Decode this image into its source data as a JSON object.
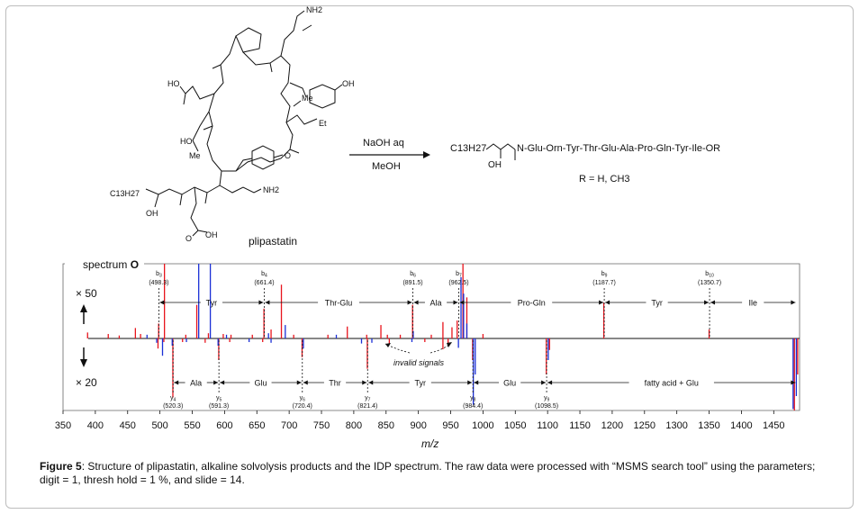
{
  "structure": {
    "compound_name": "plipastatin",
    "reagent_top": "NaOH aq",
    "reagent_bottom": "MeOH",
    "product_chain": "C13H27",
    "product_sequence": "N-Glu-Orn-Tyr-Thr-Glu-Ala-Pro-Gln-Tyr-Ile-OR",
    "product_oh": "OH",
    "r_definition": "R = H, CH3",
    "labels": {
      "nh2_top": "NH2",
      "ho_left": "HO",
      "oh_right": "OH",
      "me1": "Me",
      "et": "Et",
      "ho_thr": "HO",
      "me2": "Me",
      "nh2_orn": "NH2",
      "c13h27": "C13H27",
      "oh_fa": "OH",
      "o_ester": "O",
      "glu_oh": "OH",
      "glu_o": "O"
    }
  },
  "spectrum": {
    "label": "spectrum",
    "label_bold": "O",
    "scale_top": "× 50",
    "scale_bottom": "× 20",
    "x_axis_label": "m/z",
    "invalid_label": "invalid signals"
  },
  "chart_data": {
    "type": "bar",
    "xlim": [
      350,
      1490
    ],
    "x_ticks": [
      350,
      400,
      450,
      500,
      550,
      600,
      650,
      700,
      750,
      800,
      850,
      900,
      950,
      1000,
      1050,
      1100,
      1150,
      1200,
      1250,
      1300,
      1350,
      1400,
      1450
    ],
    "xlabel": "m/z",
    "b_ions": [
      {
        "ion": "b3",
        "mz": "498.3",
        "x": 498.3
      },
      {
        "ion": "b4",
        "mz": "661.4",
        "x": 661.4
      },
      {
        "ion": "b6",
        "mz": "891.5",
        "x": 891.5
      },
      {
        "ion": "b7",
        "mz": "962.5",
        "x": 962.5
      },
      {
        "ion": "b9",
        "mz": "1187.7",
        "x": 1187.7
      },
      {
        "ion": "b10",
        "mz": "1350.7",
        "x": 1350.7
      }
    ],
    "y_ions": [
      {
        "ion": "y4",
        "mz": "520.3",
        "x": 520.3
      },
      {
        "ion": "y5",
        "mz": "591.3",
        "x": 591.3
      },
      {
        "ion": "y6",
        "mz": "720.4",
        "x": 720.4
      },
      {
        "ion": "y7",
        "mz": "821.4",
        "x": 821.4
      },
      {
        "ion": "y8",
        "mz": "984.4",
        "x": 984.4
      },
      {
        "ion": "y9",
        "mz": "1098.5",
        "x": 1098.5
      }
    ],
    "b_segments": [
      {
        "label": "Tyr",
        "from": 498.3,
        "to": 661.4
      },
      {
        "label": "Thr-Glu",
        "from": 661.4,
        "to": 891.5
      },
      {
        "label": "Ala",
        "from": 891.5,
        "to": 962.5
      },
      {
        "label": "Pro-Gln",
        "from": 962.5,
        "to": 1187.7
      },
      {
        "label": "Tyr",
        "from": 1187.7,
        "to": 1350.7
      },
      {
        "label": "Ile",
        "from": 1350.7,
        "to": 1485
      }
    ],
    "y_segments": [
      {
        "label": "Ala",
        "from": 520.3,
        "to": 591.3
      },
      {
        "label": "Glu",
        "from": 591.3,
        "to": 720.4
      },
      {
        "label": "Thr",
        "from": 720.4,
        "to": 821.4
      },
      {
        "label": "Tyr",
        "from": 821.4,
        "to": 984.4
      },
      {
        "label": "Glu",
        "from": 984.4,
        "to": 1098.5
      },
      {
        "label": "fatty acid + Glu",
        "from": 1098.5,
        "to": 1485
      }
    ],
    "upper_peaks_red": [
      [
        388,
        0.08
      ],
      [
        420,
        0.06
      ],
      [
        437,
        0.04
      ],
      [
        462,
        0.14
      ],
      [
        470,
        0.06
      ],
      [
        498,
        0.2
      ],
      [
        507,
        1.0
      ],
      [
        540,
        0.05
      ],
      [
        557,
        0.45
      ],
      [
        575,
        0.07
      ],
      [
        598,
        0.06
      ],
      [
        610,
        0.05
      ],
      [
        643,
        0.05
      ],
      [
        661,
        0.4
      ],
      [
        672,
        0.12
      ],
      [
        688,
        0.72
      ],
      [
        707,
        0.05
      ],
      [
        760,
        0.05
      ],
      [
        790,
        0.16
      ],
      [
        820,
        0.05
      ],
      [
        842,
        0.18
      ],
      [
        852,
        0.05
      ],
      [
        872,
        0.05
      ],
      [
        891,
        0.45
      ],
      [
        920,
        0.05
      ],
      [
        938,
        0.22
      ],
      [
        952,
        0.15
      ],
      [
        960,
        0.24
      ],
      [
        969,
        1.0
      ],
      [
        975,
        0.55
      ],
      [
        1000,
        0.06
      ],
      [
        1187,
        0.48
      ],
      [
        1350,
        0.12
      ]
    ],
    "upper_peaks_blue": [
      [
        480,
        0.05
      ],
      [
        560,
        1.0
      ],
      [
        578,
        1.0
      ],
      [
        603,
        0.05
      ],
      [
        668,
        0.07
      ],
      [
        694,
        0.18
      ],
      [
        773,
        0.05
      ],
      [
        892,
        0.1
      ],
      [
        966,
        0.82
      ],
      [
        970,
        0.6
      ],
      [
        975,
        0.2
      ]
    ],
    "lower_peaks_red": [
      [
        497,
        0.14
      ],
      [
        506,
        0.05
      ],
      [
        520,
        0.82
      ],
      [
        535,
        0.05
      ],
      [
        570,
        0.06
      ],
      [
        591,
        0.3
      ],
      [
        608,
        0.05
      ],
      [
        659,
        0.05
      ],
      [
        720,
        0.26
      ],
      [
        821,
        0.42
      ],
      [
        855,
        0.08
      ],
      [
        910,
        0.05
      ],
      [
        938,
        0.15
      ],
      [
        946,
        0.1
      ],
      [
        984,
        0.3
      ],
      [
        1098,
        0.5
      ],
      [
        1103,
        0.16
      ],
      [
        1482,
        1.0
      ],
      [
        1487,
        0.5
      ]
    ],
    "lower_peaks_blue": [
      [
        495,
        0.06
      ],
      [
        504,
        0.24
      ],
      [
        519,
        0.1
      ],
      [
        541,
        0.05
      ],
      [
        590,
        0.1
      ],
      [
        638,
        0.05
      ],
      [
        672,
        0.06
      ],
      [
        722,
        0.14
      ],
      [
        812,
        0.07
      ],
      [
        828,
        0.06
      ],
      [
        890,
        0.05
      ],
      [
        962,
        0.13
      ],
      [
        985,
        0.92
      ],
      [
        988,
        0.5
      ],
      [
        1101,
        0.3
      ],
      [
        1480,
        0.98
      ],
      [
        1485,
        0.8
      ]
    ]
  },
  "caption": {
    "label": "Figure 5",
    "text": ":  Structure of plipastatin, alkaline solvolysis products and the IDP spectrum. The raw data were processed with “MSMS search tool” using the parameters; digit = 1, thresh hold = 1 %, and slide = 14."
  },
  "colors": {
    "red": "#e8141c",
    "blue": "#1a2fd6",
    "ink": "#111111",
    "frame": "#bdbdbd"
  }
}
